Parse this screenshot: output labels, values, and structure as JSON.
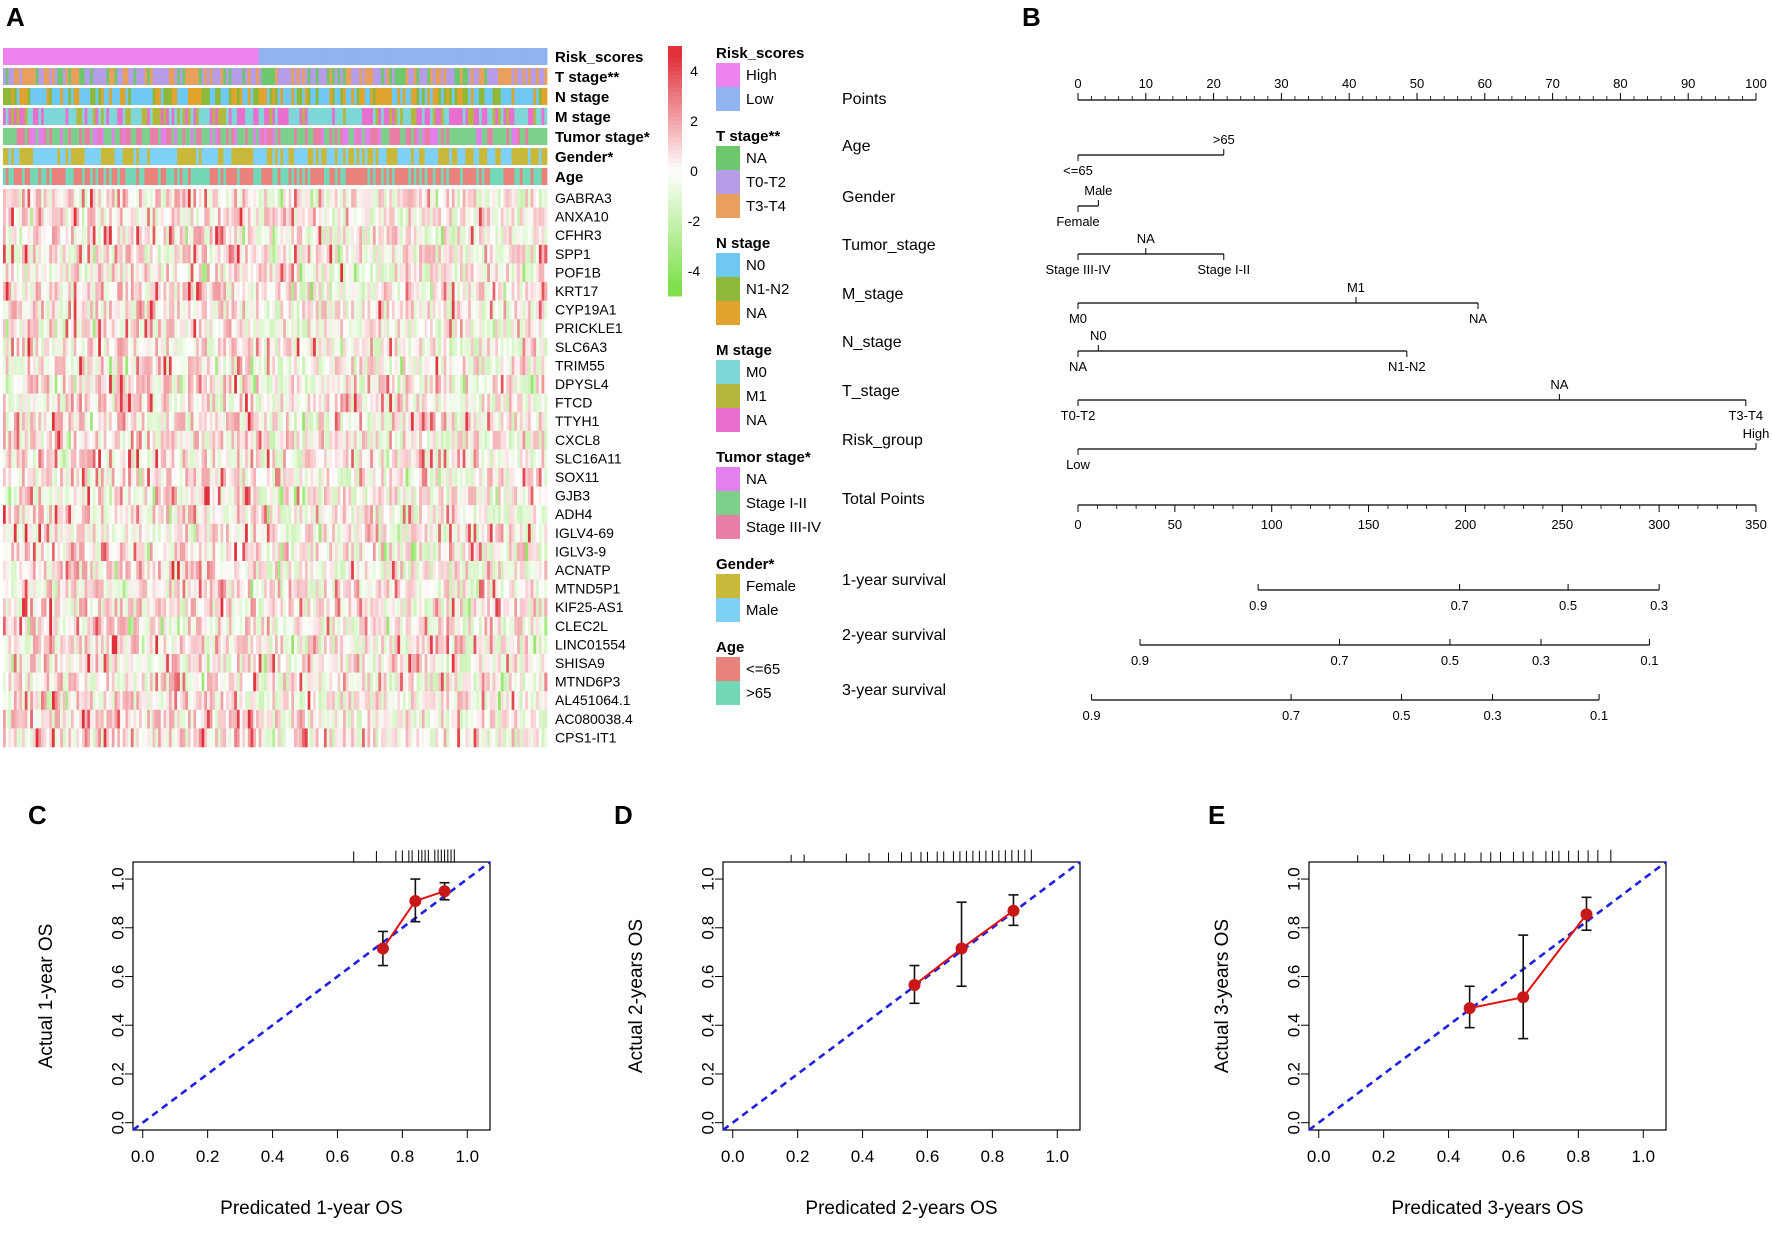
{
  "panel_labels": [
    "A",
    "B",
    "C",
    "D",
    "E"
  ],
  "chart_data": [
    {
      "panel": "A",
      "type": "heatmap",
      "annotation_rows": [
        "Risk_scores",
        "T stage**",
        "N stage",
        "M stage",
        "Tumor stage*",
        "Gender*",
        "Age"
      ],
      "genes": [
        "GABRA3",
        "ANXA10",
        "CFHR3",
        "SPP1",
        "POF1B",
        "KRT17",
        "CYP19A1",
        "PRICKLE1",
        "SLC6A3",
        "TRIM55",
        "DPYSL4",
        "FTCD",
        "TTYH1",
        "CXCL8",
        "SLC16A11",
        "SOX11",
        "GJB3",
        "ADH4",
        "IGLV4-69",
        "IGLV3-9",
        "ACNATP",
        "MTND5P1",
        "KIF25-AS1",
        "CLEC2L",
        "LINC01554",
        "SHISA9",
        "MTND6P3",
        "AL451064.1",
        "AC080038.4",
        "CPS1-IT1"
      ],
      "color_scale": {
        "ticks": [
          "4",
          "2",
          "0",
          "-2",
          "-4"
        ],
        "range": [
          -5,
          5
        ],
        "high": "#e0303a",
        "mid": "#ffffff",
        "low": "#7fe04a"
      },
      "legend_groups": [
        {
          "title": "Risk_scores",
          "items": [
            {
              "label": "High",
              "color": "#ee82ee"
            },
            {
              "label": "Low",
              "color": "#8fb4f0"
            }
          ]
        },
        {
          "title": "T stage**",
          "items": [
            {
              "label": "NA",
              "color": "#6cc86c"
            },
            {
              "label": "T0-T2",
              "color": "#b79de8"
            },
            {
              "label": "T3-T4",
              "color": "#e9a05c"
            }
          ]
        },
        {
          "title": "N stage",
          "items": [
            {
              "label": "N0",
              "color": "#6ec8f0"
            },
            {
              "label": "N1-N2",
              "color": "#8db83a"
            },
            {
              "label": "NA",
              "color": "#e0a32e"
            }
          ]
        },
        {
          "title": "M stage",
          "items": [
            {
              "label": "M0",
              "color": "#7fd6d6"
            },
            {
              "label": "M1",
              "color": "#b3b83c"
            },
            {
              "label": "NA",
              "color": "#e86ed0"
            }
          ]
        },
        {
          "title": "Tumor stage*",
          "items": [
            {
              "label": "NA",
              "color": "#e47ff0"
            },
            {
              "label": "Stage I-II",
              "color": "#7dcf8c"
            },
            {
              "label": "Stage III-IV",
              "color": "#e77fa6"
            }
          ]
        },
        {
          "title": "Gender*",
          "items": [
            {
              "label": "Female",
              "color": "#c9b83a"
            },
            {
              "label": "Male",
              "color": "#7fd0f5"
            }
          ]
        },
        {
          "title": "Age",
          "items": [
            {
              "label": "<=65",
              "color": "#e8827a"
            },
            {
              "label": ">65",
              "color": "#72d8b8"
            }
          ]
        }
      ]
    },
    {
      "panel": "B",
      "type": "nomogram",
      "points_axis": {
        "label": "Points",
        "min": 0,
        "max": 100,
        "ticks": [
          "0",
          "10",
          "20",
          "30",
          "40",
          "50",
          "60",
          "70",
          "80",
          "90",
          "100"
        ]
      },
      "variables": [
        {
          "name": "Age",
          "line": [
            0,
            21.5
          ],
          "marks": [
            {
              "label": ">65",
              "at": 21.5,
              "pos": "above"
            },
            {
              "label": "<=65",
              "at": 0,
              "pos": "below"
            }
          ]
        },
        {
          "name": "Gender",
          "line": [
            0,
            3
          ],
          "marks": [
            {
              "label": "Male",
              "at": 3,
              "pos": "above"
            },
            {
              "label": "Female",
              "at": 0,
              "pos": "below"
            }
          ]
        },
        {
          "name": "Tumor_stage",
          "line": [
            0,
            21.5
          ],
          "marks": [
            {
              "label": "NA",
              "at": 10,
              "pos": "above"
            },
            {
              "label": "Stage III-IV",
              "at": 0,
              "pos": "below"
            },
            {
              "label": "Stage I-II",
              "at": 21.5,
              "pos": "below"
            }
          ]
        },
        {
          "name": "M_stage",
          "line": [
            0,
            59
          ],
          "marks": [
            {
              "label": "M1",
              "at": 41,
              "pos": "above"
            },
            {
              "label": "M0",
              "at": 0,
              "pos": "below"
            },
            {
              "label": "NA",
              "at": 59,
              "pos": "below"
            }
          ]
        },
        {
          "name": "N_stage",
          "line": [
            0,
            48.5
          ],
          "marks": [
            {
              "label": "N0",
              "at": 3,
              "pos": "above"
            },
            {
              "label": "NA",
              "at": 0,
              "pos": "below"
            },
            {
              "label": "N1-N2",
              "at": 48.5,
              "pos": "below"
            }
          ]
        },
        {
          "name": "T_stage",
          "line": [
            0,
            98.5
          ],
          "marks": [
            {
              "label": "NA",
              "at": 71,
              "pos": "above"
            },
            {
              "label": "T0-T2",
              "at": 0,
              "pos": "below"
            },
            {
              "label": "T3-T4",
              "at": 98.5,
              "pos": "below"
            }
          ]
        },
        {
          "name": "Risk_group",
          "line": [
            0,
            100
          ],
          "marks": [
            {
              "label": "High",
              "at": 100,
              "pos": "above"
            },
            {
              "label": "Low",
              "at": 0,
              "pos": "below"
            }
          ]
        }
      ],
      "total_points": {
        "label": "Total Points",
        "min": 0,
        "max": 350,
        "ticks": [
          "0",
          "50",
          "100",
          "150",
          "200",
          "250",
          "300",
          "350"
        ]
      },
      "survival_scales": [
        {
          "label": "1-year survival",
          "line": [
            93,
            300
          ],
          "ticks": [
            {
              "label": "0.9",
              "at": 93
            },
            {
              "label": "0.7",
              "at": 197
            },
            {
              "label": "0.5",
              "at": 253
            },
            {
              "label": "0.3",
              "at": 300
            }
          ]
        },
        {
          "label": "2-year survival",
          "line": [
            32,
            295
          ],
          "ticks": [
            {
              "label": "0.9",
              "at": 32
            },
            {
              "label": "0.7",
              "at": 135
            },
            {
              "label": "0.5",
              "at": 192
            },
            {
              "label": "0.3",
              "at": 239
            },
            {
              "label": "0.1",
              "at": 295
            }
          ]
        },
        {
          "label": "3-year survival",
          "line": [
            7,
            269
          ],
          "ticks": [
            {
              "label": "0.9",
              "at": 7
            },
            {
              "label": "0.7",
              "at": 110
            },
            {
              "label": "0.5",
              "at": 167
            },
            {
              "label": "0.3",
              "at": 214
            },
            {
              "label": "0.1",
              "at": 269
            }
          ]
        }
      ]
    },
    {
      "panel": "C",
      "type": "line",
      "xlabel": "Predicated 1-year OS",
      "ylabel": "Actual 1-year OS",
      "xlim": [
        0,
        1
      ],
      "ylim": [
        0,
        1
      ],
      "ticks": [
        "0.0",
        "0.2",
        "0.4",
        "0.6",
        "0.8",
        "1.0"
      ],
      "points": [
        {
          "x": 0.74,
          "y": 0.715,
          "lo": 0.645,
          "hi": 0.785
        },
        {
          "x": 0.84,
          "y": 0.91,
          "lo": 0.825,
          "hi": 1.0
        },
        {
          "x": 0.93,
          "y": 0.95,
          "lo": 0.915,
          "hi": 0.985
        }
      ],
      "rug": [
        0.65,
        0.72,
        0.78,
        0.8,
        0.82,
        0.83,
        0.85,
        0.86,
        0.87,
        0.88,
        0.9,
        0.91,
        0.92,
        0.93,
        0.94,
        0.95,
        0.96
      ]
    },
    {
      "panel": "D",
      "type": "line",
      "xlabel": "Predicated 2-years OS",
      "ylabel": "Actual 2-years OS",
      "xlim": [
        0,
        1
      ],
      "ylim": [
        0,
        1
      ],
      "ticks": [
        "0.0",
        "0.2",
        "0.4",
        "0.6",
        "0.8",
        "1.0"
      ],
      "points": [
        {
          "x": 0.56,
          "y": 0.565,
          "lo": 0.49,
          "hi": 0.645
        },
        {
          "x": 0.705,
          "y": 0.715,
          "lo": 0.56,
          "hi": 0.905
        },
        {
          "x": 0.865,
          "y": 0.87,
          "lo": 0.81,
          "hi": 0.935
        }
      ],
      "rug": [
        0.18,
        0.22,
        0.35,
        0.42,
        0.48,
        0.52,
        0.55,
        0.58,
        0.6,
        0.63,
        0.65,
        0.68,
        0.7,
        0.72,
        0.74,
        0.76,
        0.78,
        0.8,
        0.82,
        0.84,
        0.86,
        0.88,
        0.9,
        0.92
      ]
    },
    {
      "panel": "E",
      "type": "line",
      "xlabel": "Predicated 3-years OS",
      "ylabel": "Actual 3-years OS",
      "xlim": [
        0,
        1
      ],
      "ylim": [
        0,
        1
      ],
      "ticks": [
        "0.0",
        "0.2",
        "0.4",
        "0.6",
        "0.8",
        "1.0"
      ],
      "points": [
        {
          "x": 0.465,
          "y": 0.47,
          "lo": 0.39,
          "hi": 0.56
        },
        {
          "x": 0.63,
          "y": 0.515,
          "lo": 0.345,
          "hi": 0.77
        },
        {
          "x": 0.825,
          "y": 0.855,
          "lo": 0.79,
          "hi": 0.925
        }
      ],
      "rug": [
        0.12,
        0.2,
        0.28,
        0.34,
        0.38,
        0.42,
        0.45,
        0.5,
        0.53,
        0.56,
        0.6,
        0.63,
        0.66,
        0.7,
        0.72,
        0.74,
        0.77,
        0.8,
        0.83,
        0.86,
        0.9
      ]
    }
  ]
}
